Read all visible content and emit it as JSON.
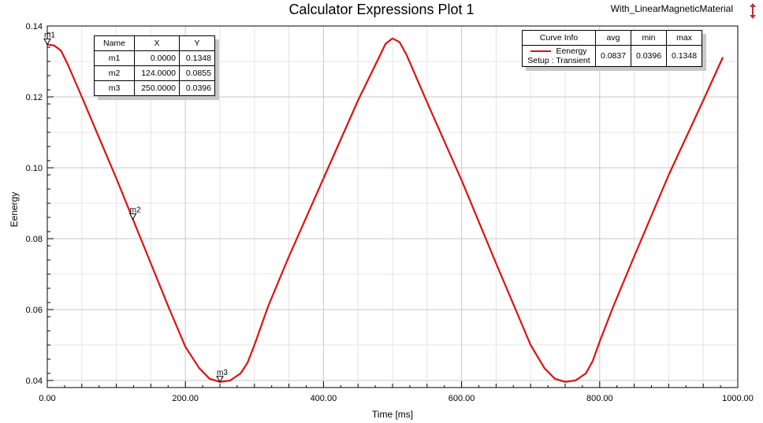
{
  "window": {
    "design_name": "With_LinearMagneticMaterial",
    "corner_icon": "expand-arrows-icon"
  },
  "marker_table": {
    "headers": [
      "Name",
      "X",
      "Y"
    ],
    "rows": [
      {
        "name": "m1",
        "x": "0.0000",
        "y": "0.1348"
      },
      {
        "name": "m2",
        "x": "124.0000",
        "y": "0.0855"
      },
      {
        "name": "m3",
        "x": "250.0000",
        "y": "0.0396"
      }
    ]
  },
  "curve_info": {
    "headers": [
      "Curve Info",
      "avg",
      "min",
      "max"
    ],
    "curve_name": "Eenergy",
    "setup": "Setup : Transient",
    "avg": "0.0837",
    "min": "0.0396",
    "max": "0.1348",
    "color": "#e01010"
  },
  "chart_data": {
    "type": "line",
    "title": "Calculator Expressions Plot 1",
    "xlabel": "Time [ms]",
    "ylabel": "Eenergy",
    "xlim": [
      0,
      1000
    ],
    "ylim": [
      0.038,
      0.14
    ],
    "xticks": [
      0,
      200,
      400,
      600,
      800,
      1000
    ],
    "xtick_labels": [
      "0.00",
      "200.00",
      "400.00",
      "600.00",
      "800.00",
      "1000.00"
    ],
    "yticks": [
      0.04,
      0.06,
      0.08,
      0.1,
      0.12,
      0.14
    ],
    "ytick_labels": [
      "0.04",
      "0.06",
      "0.08",
      "0.10",
      "0.12",
      "0.14"
    ],
    "grid": true,
    "series": [
      {
        "name": "Eenergy",
        "color": "#e01010",
        "x": [
          0,
          10,
          20,
          30,
          50,
          75,
          100,
          124,
          150,
          175,
          200,
          220,
          235,
          250,
          265,
          280,
          290,
          300,
          320,
          350,
          400,
          450,
          480,
          490,
          500,
          510,
          520,
          550,
          600,
          650,
          700,
          720,
          735,
          750,
          765,
          780,
          790,
          800,
          820,
          850,
          900,
          950,
          978
        ],
        "y": [
          0.1348,
          0.1345,
          0.133,
          0.129,
          0.12,
          0.1085,
          0.097,
          0.0855,
          0.073,
          0.061,
          0.0495,
          0.0435,
          0.0405,
          0.0396,
          0.04,
          0.042,
          0.045,
          0.05,
          0.061,
          0.075,
          0.097,
          0.119,
          0.131,
          0.135,
          0.1365,
          0.1355,
          0.132,
          0.1185,
          0.0965,
          0.073,
          0.05,
          0.0435,
          0.0405,
          0.0396,
          0.04,
          0.042,
          0.0455,
          0.051,
          0.061,
          0.075,
          0.098,
          0.119,
          0.131
        ]
      }
    ],
    "markers": [
      {
        "name": "m1",
        "x": 0,
        "y": 0.1348
      },
      {
        "name": "m2",
        "x": 124,
        "y": 0.0855
      },
      {
        "name": "m3",
        "x": 250,
        "y": 0.0396
      }
    ]
  }
}
